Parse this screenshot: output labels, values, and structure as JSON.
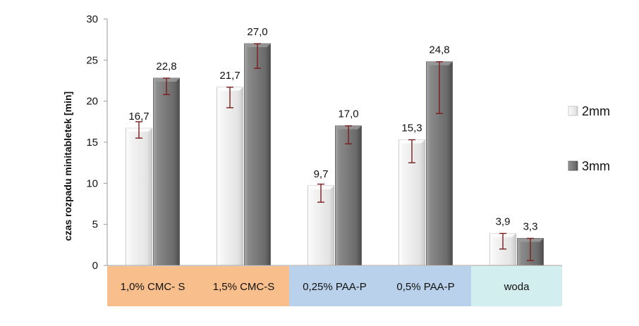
{
  "chart_data": {
    "type": "bar",
    "ylabel": "czas rozpadu  minitabletek [min]",
    "ylim": [
      0,
      30
    ],
    "yticks": [
      0,
      5,
      10,
      15,
      20,
      25,
      30
    ],
    "grid": false,
    "legend_position": "right",
    "categories": [
      "1,0% CMC- S",
      "1,5% CMC-S",
      "0,25% PAA-P",
      "0,5% PAA-P",
      "woda"
    ],
    "category_groups": [
      {
        "members": [
          0,
          1
        ],
        "color": "#f8bf8c"
      },
      {
        "members": [
          2,
          3
        ],
        "color": "#b9d1ea"
      },
      {
        "members": [
          4
        ],
        "color": "#d2eeef"
      }
    ],
    "series": [
      {
        "name": "2mm",
        "color": "#efefef",
        "values": [
          16.7,
          21.7,
          9.7,
          15.3,
          3.9
        ],
        "labels": [
          "16,7",
          "21,7",
          "9,7",
          "15,3",
          "3,9"
        ],
        "error_low": [
          15.5,
          19.2,
          7.7,
          12.5,
          2.0
        ],
        "error_high": [
          17.5,
          21.7,
          9.9,
          15.3,
          3.9
        ]
      },
      {
        "name": "3mm",
        "color": "#7a7a7a",
        "values": [
          22.8,
          27.0,
          17.0,
          24.8,
          3.3
        ],
        "labels": [
          "22,8",
          "27,0",
          "17,0",
          "24,8",
          "3,3"
        ],
        "error_low": [
          20.8,
          24.0,
          14.8,
          18.5,
          0.6
        ],
        "error_high": [
          22.8,
          27.0,
          17.0,
          24.8,
          3.3
        ]
      }
    ]
  }
}
